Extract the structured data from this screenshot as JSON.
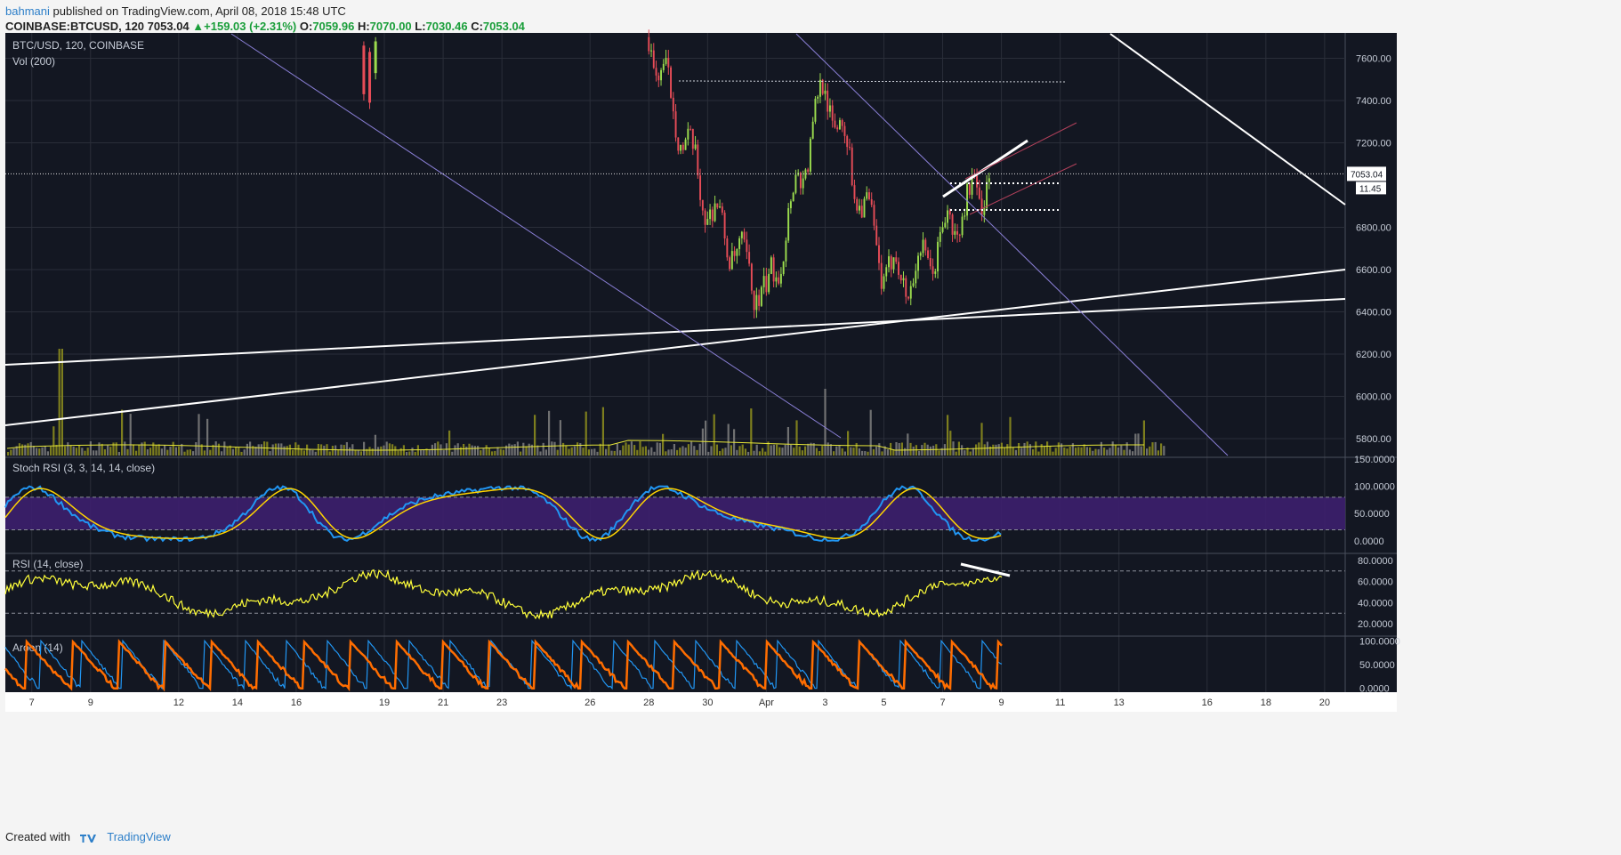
{
  "header": {
    "author": "bahmani",
    "published_text": "published on TradingView.com, April 08, 2018 15:48 UTC",
    "symbol": "COINBASE:BTCUSD, 120",
    "last": "7053.04",
    "change": "+159.03 (+2.31%)",
    "o_label": "O:",
    "o_value": "7059.96",
    "h_label": "H:",
    "h_value": "7070.00",
    "l_label": "L:",
    "l_value": "7030.46",
    "c_label": "C:",
    "c_value": "7053.04"
  },
  "footer": {
    "created_with": "Created with",
    "brand": "TradingView"
  },
  "colors": {
    "background": "#131722",
    "grid": "#2a2e39",
    "up": "#9bdc4e",
    "down": "#e64c57",
    "stoch_k": "#2196f3",
    "stoch_d": "#ffd400",
    "stoch_band": "#3d1f6e",
    "rsi": "#ffff3a",
    "aroon_up": "#ff6d00",
    "aroon_down": "#2196f3",
    "trendline": "#ffffff",
    "diag": "#8a7fd6"
  },
  "chart_data": [
    {
      "type": "candlestick",
      "title": "BTC/USD, 120, COINBASE",
      "subtitle": "Vol (200)",
      "yticks": [
        "7600.00",
        "7400.00",
        "7200.00",
        "6800.00",
        "6600.00",
        "6400.00",
        "6200.00",
        "6000.00",
        "5800.00"
      ],
      "ylim": [
        5720,
        7720
      ],
      "last_price": "7053.04",
      "countdown": "11.45",
      "xticks": [
        "7",
        "9",
        "12",
        "14",
        "16",
        "19",
        "21",
        "23",
        "26",
        "28",
        "30",
        "Apr",
        "3",
        "5",
        "7",
        "9",
        "11",
        "13",
        "16",
        "18",
        "20"
      ],
      "key_points": [
        {
          "date": "2018-03-28",
          "price": 7700
        },
        {
          "date": "2018-03-30",
          "price": 6900
        },
        {
          "date": "2018-04-01",
          "price": 6450
        },
        {
          "date": "2018-04-03",
          "price": 7480
        },
        {
          "date": "2018-04-05",
          "price": 6600
        },
        {
          "date": "2018-04-06",
          "price": 6560
        },
        {
          "date": "2018-04-08",
          "price": 7053.04
        }
      ]
    },
    {
      "type": "line",
      "title": "Stoch RSI (3, 3, 14, 14, close)",
      "yticks": [
        "150.0000",
        "100.0000",
        "50.0000",
        "0.0000"
      ],
      "ylim": [
        -20,
        150
      ],
      "band": [
        20,
        80
      ],
      "series": [
        {
          "name": "K"
        },
        {
          "name": "D"
        }
      ]
    },
    {
      "type": "line",
      "title": "RSI (14, close)",
      "yticks": [
        "80.0000",
        "60.0000",
        "40.0000",
        "20.0000"
      ],
      "ylim": [
        10,
        85
      ],
      "levels": [
        30,
        70
      ],
      "end_value": 63
    },
    {
      "type": "line",
      "title": "Aroon (14)",
      "yticks": [
        "100.0000",
        "50.0000",
        "0.0000"
      ],
      "ylim": [
        -8,
        108
      ],
      "series": [
        {
          "name": "Up"
        },
        {
          "name": "Down"
        }
      ]
    }
  ]
}
